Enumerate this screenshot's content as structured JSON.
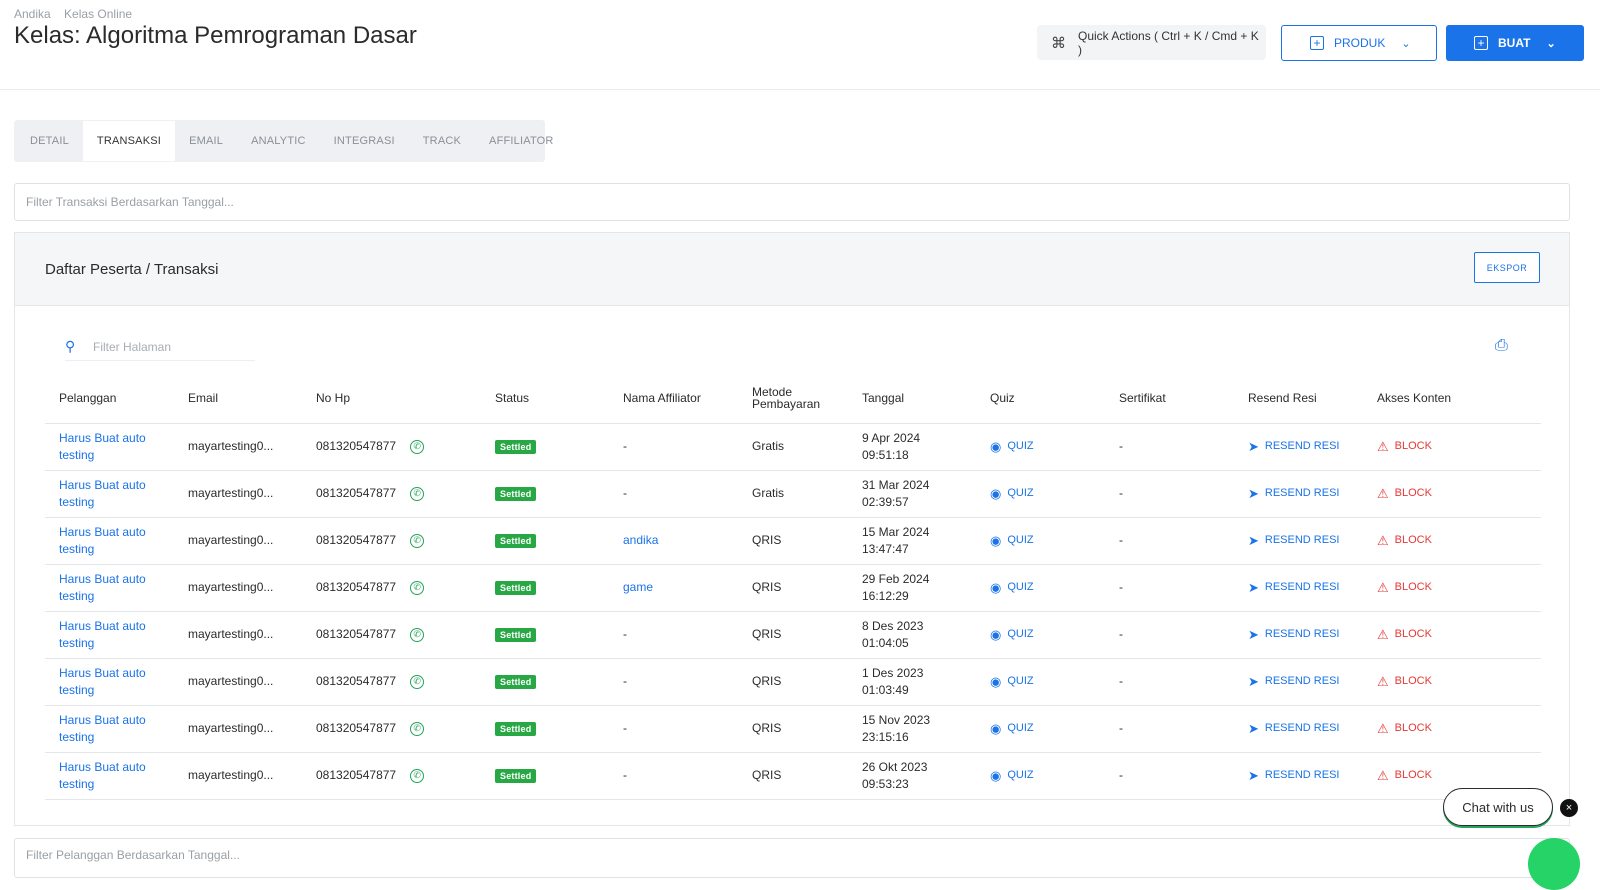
{
  "breadcrumb": [
    "Andika",
    "Kelas Online"
  ],
  "page_title": "Kelas: Algoritma Pemrograman Dasar",
  "header": {
    "quick_actions": "Quick Actions ( Ctrl + K / Cmd + K )",
    "produk": "PRODUK",
    "buat": "BUAT"
  },
  "tabs": [
    "DETAIL",
    "TRANSAKSI",
    "EMAIL",
    "ANALYTIC",
    "INTEGRASI",
    "TRACK",
    "AFFILIATOR"
  ],
  "active_tab": "TRANSAKSI",
  "filter_date_placeholder": "Filter Transaksi Berdasarkan Tanggal...",
  "panel": {
    "title": "Daftar Peserta / Transaksi",
    "export": "EKSPOR",
    "search_placeholder": "Filter Halaman"
  },
  "columns": [
    "Pelanggan",
    "Email",
    "No Hp",
    "Status",
    "Nama Affiliator",
    "Metode Pembayaran",
    "Tanggal",
    "Quiz",
    "Sertifikat",
    "Resend Resi",
    "Akses Konten"
  ],
  "rows": [
    {
      "pelanggan": "Harus Buat auto testing",
      "email": "mayartesting0...",
      "hp": "081320547877",
      "status": "Settled",
      "affiliator": "-",
      "metode": "Gratis",
      "tanggal1": "9 Apr 2024",
      "tanggal2": "09:51:18",
      "quiz": "QUIZ",
      "sertifikat": "-",
      "resend": "RESEND RESI",
      "akses": "BLOCK"
    },
    {
      "pelanggan": "Harus Buat auto testing",
      "email": "mayartesting0...",
      "hp": "081320547877",
      "status": "Settled",
      "affiliator": "-",
      "metode": "Gratis",
      "tanggal1": "31 Mar 2024",
      "tanggal2": "02:39:57",
      "quiz": "QUIZ",
      "sertifikat": "-",
      "resend": "RESEND RESI",
      "akses": "BLOCK"
    },
    {
      "pelanggan": "Harus Buat auto testing",
      "email": "mayartesting0...",
      "hp": "081320547877",
      "status": "Settled",
      "affiliator": "andika",
      "metode": "QRIS",
      "tanggal1": "15 Mar 2024",
      "tanggal2": "13:47:47",
      "quiz": "QUIZ",
      "sertifikat": "-",
      "resend": "RESEND RESI",
      "akses": "BLOCK"
    },
    {
      "pelanggan": "Harus Buat auto testing",
      "email": "mayartesting0...",
      "hp": "081320547877",
      "status": "Settled",
      "affiliator": "game",
      "metode": "QRIS",
      "tanggal1": "29 Feb 2024",
      "tanggal2": "16:12:29",
      "quiz": "QUIZ",
      "sertifikat": "-",
      "resend": "RESEND RESI",
      "akses": "BLOCK"
    },
    {
      "pelanggan": "Harus Buat auto testing",
      "email": "mayartesting0...",
      "hp": "081320547877",
      "status": "Settled",
      "affiliator": "-",
      "metode": "QRIS",
      "tanggal1": "8 Des 2023",
      "tanggal2": "01:04:05",
      "quiz": "QUIZ",
      "sertifikat": "-",
      "resend": "RESEND RESI",
      "akses": "BLOCK"
    },
    {
      "pelanggan": "Harus Buat auto testing",
      "email": "mayartesting0...",
      "hp": "081320547877",
      "status": "Settled",
      "affiliator": "-",
      "metode": "QRIS",
      "tanggal1": "1 Des 2023",
      "tanggal2": "01:03:49",
      "quiz": "QUIZ",
      "sertifikat": "-",
      "resend": "RESEND RESI",
      "akses": "BLOCK"
    },
    {
      "pelanggan": "Harus Buat auto testing",
      "email": "mayartesting0...",
      "hp": "081320547877",
      "status": "Settled",
      "affiliator": "-",
      "metode": "QRIS",
      "tanggal1": "15 Nov 2023",
      "tanggal2": "23:15:16",
      "quiz": "QUIZ",
      "sertifikat": "-",
      "resend": "RESEND RESI",
      "akses": "BLOCK"
    },
    {
      "pelanggan": "Harus Buat auto testing",
      "email": "mayartesting0...",
      "hp": "081320547877",
      "status": "Settled",
      "affiliator": "-",
      "metode": "QRIS",
      "tanggal1": "26 Okt 2023",
      "tanggal2": "09:53:23",
      "quiz": "QUIZ",
      "sertifikat": "-",
      "resend": "RESEND RESI",
      "akses": "BLOCK"
    }
  ],
  "filter_pelanggan_placeholder": "Filter Pelanggan Berdasarkan Tanggal...",
  "chat": {
    "label": "Chat with us",
    "close": "×"
  },
  "icons": {
    "quick_actions": "command-icon",
    "search": "search-icon",
    "print": "printer-icon",
    "whatsapp": "whatsapp-icon",
    "quiz": "eye-icon",
    "resend": "send-icon",
    "block": "warning-icon"
  },
  "colors": {
    "accent": "#1a73e8",
    "settled": "#28a745",
    "danger": "#e53935",
    "whatsapp": "#25d366"
  }
}
